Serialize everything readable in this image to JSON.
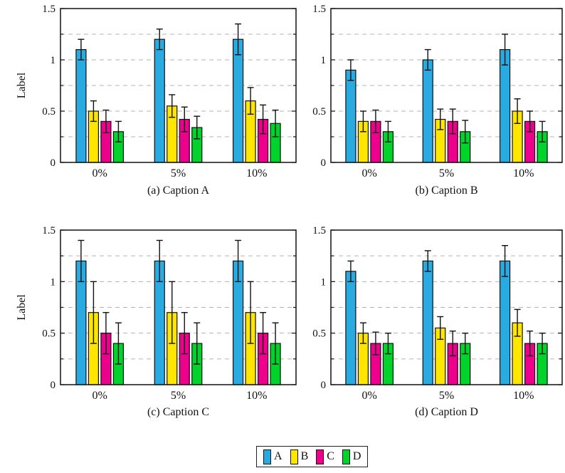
{
  "page": {
    "background": "#ffffff"
  },
  "axis": {
    "ylabel": "Label",
    "ymin": 0,
    "ymax": 1.5,
    "ytick_values": [
      0,
      0.5,
      1,
      1.5
    ],
    "ytick_labels": [
      "0",
      "0.5",
      "1",
      "1.5"
    ],
    "minor_grid_step": 0.25,
    "grid_color": "#b3b3b3",
    "grid_dashed": true,
    "box_color": "#111111",
    "bar_edge_color": "#111111",
    "error_bar_color": "#111111"
  },
  "legend": {
    "position": "bottom-center",
    "entries": [
      {
        "label": "A",
        "color": "#29ABE2"
      },
      {
        "label": "B",
        "color": "#FFE600"
      },
      {
        "label": "C",
        "color": "#EC008C"
      },
      {
        "label": "D",
        "color": "#00D42A"
      }
    ]
  },
  "chart_data": [
    {
      "id": "a",
      "type": "bar",
      "caption": "(a) Caption A",
      "ylabel": "Label",
      "categories": [
        "0%",
        "5%",
        "10%"
      ],
      "ylim": [
        0,
        1.5
      ],
      "series": [
        {
          "name": "A",
          "color": "#29ABE2",
          "values": [
            1.1,
            1.2,
            1.2
          ],
          "errors": [
            0.1,
            0.1,
            0.15
          ]
        },
        {
          "name": "B",
          "color": "#FFE600",
          "values": [
            0.5,
            0.55,
            0.6
          ],
          "errors": [
            0.1,
            0.11,
            0.13
          ]
        },
        {
          "name": "C",
          "color": "#EC008C",
          "values": [
            0.4,
            0.42,
            0.42
          ],
          "errors": [
            0.11,
            0.12,
            0.14
          ]
        },
        {
          "name": "D",
          "color": "#00D42A",
          "values": [
            0.3,
            0.34,
            0.38
          ],
          "errors": [
            0.1,
            0.11,
            0.13
          ]
        }
      ]
    },
    {
      "id": "b",
      "type": "bar",
      "caption": "(b) Caption B",
      "ylabel": "",
      "categories": [
        "0%",
        "5%",
        "10%"
      ],
      "ylim": [
        0,
        1.5
      ],
      "series": [
        {
          "name": "A",
          "color": "#29ABE2",
          "values": [
            0.9,
            1.0,
            1.1
          ],
          "errors": [
            0.1,
            0.1,
            0.15
          ]
        },
        {
          "name": "B",
          "color": "#FFE600",
          "values": [
            0.4,
            0.42,
            0.5
          ],
          "errors": [
            0.1,
            0.1,
            0.12
          ]
        },
        {
          "name": "C",
          "color": "#EC008C",
          "values": [
            0.4,
            0.4,
            0.4
          ],
          "errors": [
            0.11,
            0.12,
            0.1
          ]
        },
        {
          "name": "D",
          "color": "#00D42A",
          "values": [
            0.3,
            0.3,
            0.3
          ],
          "errors": [
            0.1,
            0.11,
            0.1
          ]
        }
      ]
    },
    {
      "id": "c",
      "type": "bar",
      "caption": "(c) Caption C",
      "ylabel": "Label",
      "categories": [
        "0%",
        "5%",
        "10%"
      ],
      "ylim": [
        0,
        1.5
      ],
      "series": [
        {
          "name": "A",
          "color": "#29ABE2",
          "values": [
            1.2,
            1.2,
            1.2
          ],
          "errors": [
            0.2,
            0.2,
            0.2
          ]
        },
        {
          "name": "B",
          "color": "#FFE600",
          "values": [
            0.7,
            0.7,
            0.7
          ],
          "errors": [
            0.3,
            0.3,
            0.3
          ]
        },
        {
          "name": "C",
          "color": "#EC008C",
          "values": [
            0.5,
            0.5,
            0.5
          ],
          "errors": [
            0.2,
            0.2,
            0.2
          ]
        },
        {
          "name": "D",
          "color": "#00D42A",
          "values": [
            0.4,
            0.4,
            0.4
          ],
          "errors": [
            0.2,
            0.2,
            0.2
          ]
        }
      ]
    },
    {
      "id": "d",
      "type": "bar",
      "caption": "(d) Caption D",
      "ylabel": "",
      "categories": [
        "0%",
        "5%",
        "10%"
      ],
      "ylim": [
        0,
        1.5
      ],
      "series": [
        {
          "name": "A",
          "color": "#29ABE2",
          "values": [
            1.1,
            1.2,
            1.2
          ],
          "errors": [
            0.1,
            0.1,
            0.15
          ]
        },
        {
          "name": "B",
          "color": "#FFE600",
          "values": [
            0.5,
            0.55,
            0.6
          ],
          "errors": [
            0.1,
            0.11,
            0.13
          ]
        },
        {
          "name": "C",
          "color": "#EC008C",
          "values": [
            0.4,
            0.4,
            0.4
          ],
          "errors": [
            0.11,
            0.12,
            0.12
          ]
        },
        {
          "name": "D",
          "color": "#00D42A",
          "values": [
            0.4,
            0.4,
            0.4
          ],
          "errors": [
            0.1,
            0.1,
            0.1
          ]
        }
      ]
    }
  ]
}
